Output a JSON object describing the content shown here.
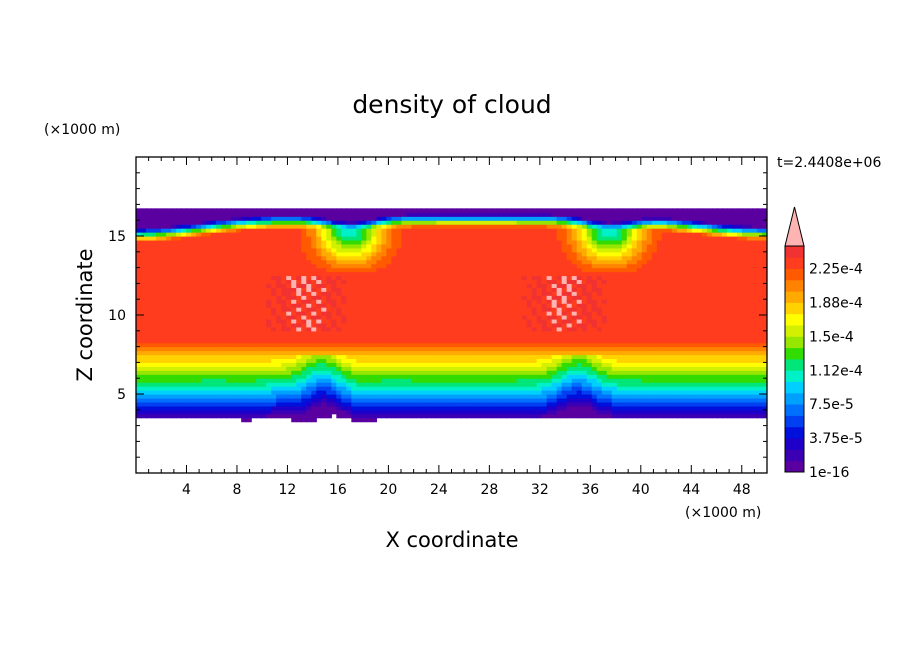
{
  "chart_data": {
    "type": "heatmap",
    "title": "density of cloud",
    "xlabel": "X coordinate",
    "ylabel": "Z coordinate",
    "x_unit": "(×1000 m)",
    "y_unit": "(×1000 m)",
    "time_label": "t=2.4408e+06",
    "xlim": [
      0,
      50
    ],
    "ylim": [
      0,
      20
    ],
    "x_ticks": [
      4,
      8,
      12,
      16,
      20,
      24,
      28,
      32,
      36,
      40,
      44,
      48
    ],
    "x_tick_labels": [
      "4",
      "8",
      "12",
      "16",
      "20",
      "24",
      "28",
      "32",
      "36",
      "40",
      "44",
      "48"
    ],
    "y_ticks": [
      5,
      10,
      15
    ],
    "y_tick_labels": [
      "5",
      "10",
      "15"
    ],
    "colorbar": {
      "labels": [
        "1e-16",
        "3.75e-5",
        "7.5e-5",
        "1.12e-4",
        "1.5e-4",
        "1.88e-4",
        "2.25e-4"
      ],
      "label_levels": [
        0,
        3.75e-05,
        7.5e-05,
        0.000112,
        0.00015,
        0.000188,
        0.000225
      ],
      "levels": [
        0,
        1.25e-05,
        2.5e-05,
        3.75e-05,
        5e-05,
        6.25e-05,
        7.5e-05,
        8.75e-05,
        0.0001,
        0.000112,
        0.000125,
        0.000138,
        0.00015,
        0.000162,
        0.000175,
        0.000188,
        0.0002,
        0.000212,
        0.000225,
        0.000238
      ],
      "colors": [
        "#5a00a0",
        "#3c00b4",
        "#1e00c8",
        "#0010dc",
        "#0040f0",
        "#0070ff",
        "#00a0ff",
        "#00d0ff",
        "#00f0c8",
        "#00e678",
        "#32dc00",
        "#96e600",
        "#d2f000",
        "#ffff00",
        "#ffd200",
        "#ffaa00",
        "#ff8200",
        "#ff5a00",
        "#ff3c1e",
        "#f03232"
      ],
      "overflow_color": "#ffb4b4"
    },
    "cloud_layer": {
      "base_z": 3.4,
      "top_z": 16.8,
      "core_value": 0.000235,
      "plume_x": [
        14.5,
        35.0
      ]
    }
  }
}
